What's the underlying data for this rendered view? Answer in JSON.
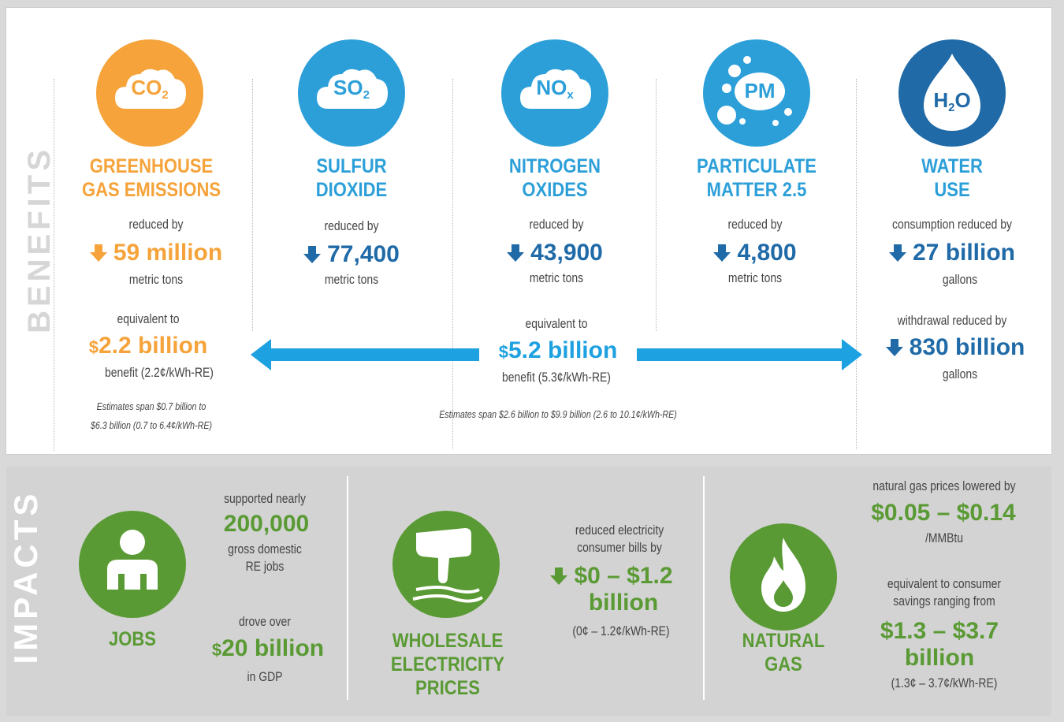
{
  "benefits": {
    "section_label": "BENEFITS",
    "colors": {
      "orange": "#f5a33a",
      "blue": "#2c9fd9",
      "dark_blue": "#1f6aa7",
      "arrow_blue": "#1ea1e0"
    },
    "items": [
      {
        "formula_main": "CO",
        "formula_sub": "2",
        "title_line1": "GREENHOUSE",
        "title_line2": "GAS EMISSIONS",
        "reduced_label": "reduced by",
        "value": "59 million",
        "unit": "metric tons",
        "icon": "co2-cloud-icon"
      },
      {
        "formula_main": "SO",
        "formula_sub": "2",
        "title_line1": "SULFUR",
        "title_line2": "DIOXIDE",
        "reduced_label": "reduced by",
        "value": "77,400",
        "unit": "metric tons",
        "icon": "so2-cloud-icon"
      },
      {
        "formula_main": "NO",
        "formula_sub": "x",
        "title_line1": "NITROGEN",
        "title_line2": "OXIDES",
        "reduced_label": "reduced by",
        "value": "43,900",
        "unit": "metric tons",
        "icon": "nox-cloud-icon"
      },
      {
        "formula_main": "PM",
        "formula_sub": "",
        "title_line1": "PARTICULATE",
        "title_line2": "MATTER 2.5",
        "reduced_label": "reduced by",
        "value": "4,800",
        "unit": "metric tons",
        "icon": "pm-particles-icon"
      },
      {
        "formula_main": "H",
        "formula_sub": "2",
        "formula_tail": "O",
        "title_line1": "WATER",
        "title_line2": "USE",
        "reduced_label": "consumption reduced by",
        "value": "27 billion",
        "unit": "gallons",
        "icon": "water-drop-icon"
      }
    ],
    "ghg_equivalent": {
      "label": "equivalent to",
      "value_currency": "$",
      "value": "2.2 billion",
      "benefit": "benefit (2.2¢/kWh-RE)",
      "estimate_line1": "Estimates span $0.7 billion to",
      "estimate_line2": "$6.3 billion (0.7 to 6.4¢/kWh-RE)"
    },
    "air_equivalent": {
      "label": "equivalent to",
      "value_currency": "$",
      "value": "5.2 billion",
      "benefit": "benefit (5.3¢/kWh-RE)",
      "estimate": "Estimates span $2.6 billion to $9.9 billion (2.6 to 10.1¢/kWh-RE)"
    },
    "water_withdrawal": {
      "label": "withdrawal reduced by",
      "value": "830 billion",
      "unit": "gallons"
    }
  },
  "impacts": {
    "section_label": "IMPACTS",
    "colors": {
      "green": "#5a9a34"
    },
    "jobs": {
      "title": "JOBS",
      "supported_label": "supported nearly",
      "jobs_value": "200,000",
      "jobs_desc_line1": "gross domestic",
      "jobs_desc_line2": "RE jobs",
      "gdp_label": "drove over",
      "gdp_currency": "$",
      "gdp_value": "20 billion",
      "gdp_unit": "in GDP",
      "icon": "person-icon"
    },
    "wholesale": {
      "title_line1": "WHOLESALE",
      "title_line2": "ELECTRICITY",
      "title_line3": "PRICES",
      "desc_line1": "reduced electricity",
      "desc_line2": "consumer bills by",
      "value_line1": "$0 – $1.2",
      "value_line2": "billion",
      "range": "(0¢ – 1.2¢/kWh-RE)",
      "icon": "hand-pointing-icon"
    },
    "natural_gas": {
      "title_line1": "NATURAL",
      "title_line2": "GAS",
      "price_label": "natural gas prices lowered by",
      "price_value": "$0.05 – $0.14",
      "price_unit": "/MMBtu",
      "savings_line1": "equivalent to consumer",
      "savings_line2": "savings ranging from",
      "savings_value_line1": "$1.3 – $3.7",
      "savings_value_line2": "billion",
      "savings_range": "(1.3¢ – 3.7¢/kWh-RE)",
      "icon": "flame-icon"
    }
  }
}
